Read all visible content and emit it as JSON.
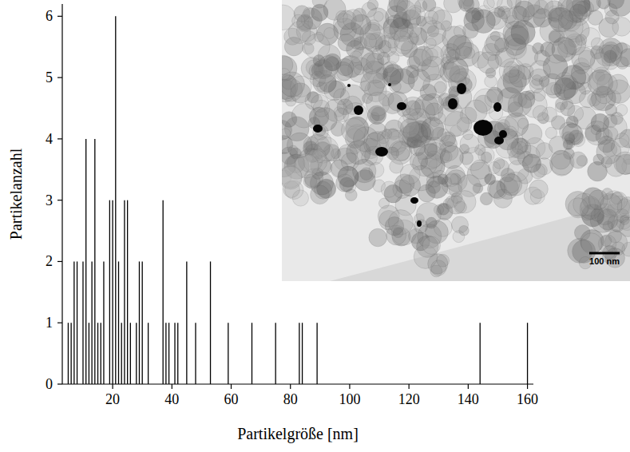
{
  "chart_data": {
    "type": "bar",
    "x_label": "Partikelgröße [nm]",
    "y_label": "Partikelanzahl",
    "x": [
      5,
      6,
      7,
      8,
      10,
      11,
      12,
      13,
      14,
      15,
      16,
      17,
      19,
      20,
      21,
      22,
      23,
      24,
      25,
      26,
      28,
      29,
      30,
      32,
      37,
      38,
      39,
      41,
      42,
      45,
      48,
      53,
      59,
      67,
      75,
      83,
      84,
      89,
      144,
      160
    ],
    "values": [
      1,
      1,
      2,
      2,
      2,
      4,
      1,
      2,
      4,
      1,
      1,
      2,
      3,
      3,
      6,
      2,
      1,
      3,
      3,
      1,
      1,
      2,
      2,
      1,
      3,
      1,
      1,
      1,
      1,
      2,
      1,
      2,
      1,
      1,
      1,
      1,
      1,
      1,
      1,
      1
    ],
    "color": "#000000",
    "xlim": [
      3,
      162
    ],
    "xticks": [
      20,
      40,
      60,
      80,
      100,
      120,
      140,
      160
    ],
    "ylim": [
      0,
      6.2
    ],
    "yticks": [
      0,
      1,
      2,
      3,
      4,
      5,
      6
    ],
    "grid": false,
    "annotations": [
      "100 nm"
    ]
  }
}
